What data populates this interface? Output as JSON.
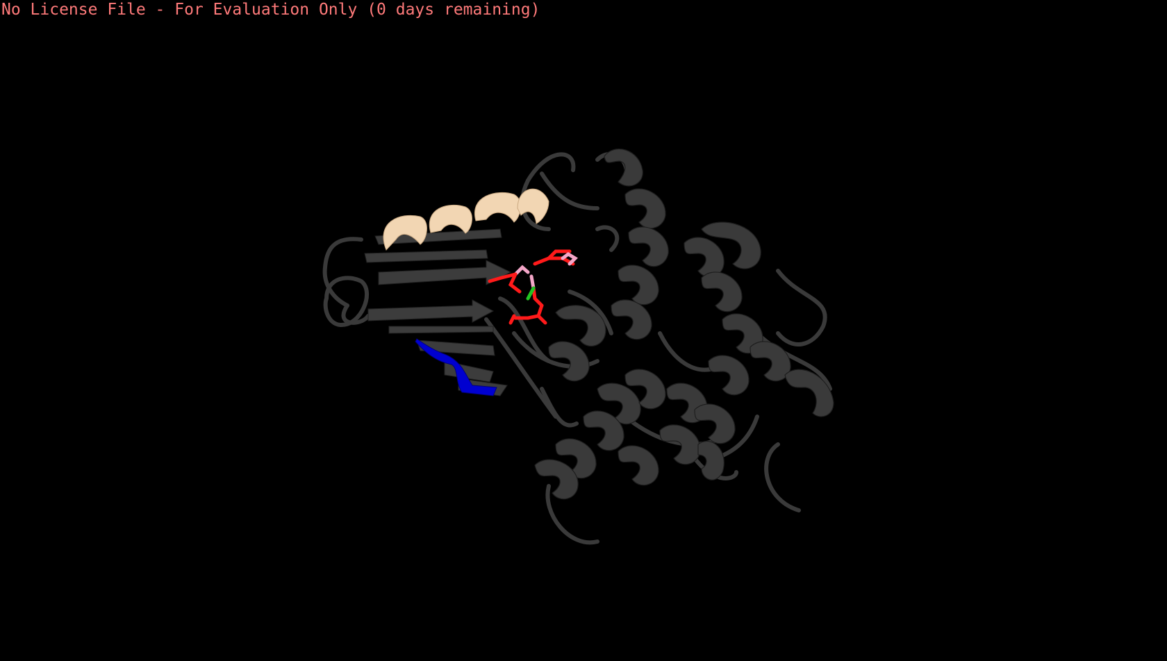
{
  "window": {
    "license_notice": "No License File - For Evaluation Only (0 days remaining)"
  },
  "colors": {
    "background": "#000000",
    "license_text": "#ff7a7a",
    "protein_cartoon": "#3a3a3a",
    "highlight_helix": "#f2d6b3",
    "highlight_loop": "#0000d0",
    "ligand_oxygen": "#ff1a1a",
    "ligand_phosphorus": "#f4a6c8",
    "ligand_green": "#22c422"
  },
  "scene": {
    "representation": "cartoon",
    "ligand_representation": "sticks"
  }
}
